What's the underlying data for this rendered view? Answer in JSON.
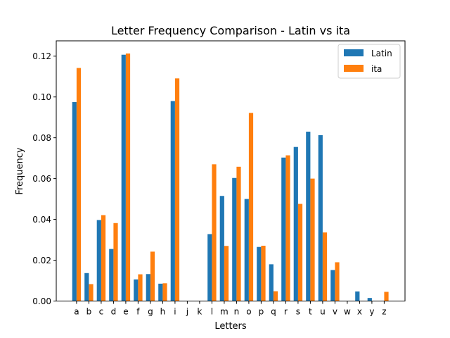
{
  "chart_data": {
    "type": "bar",
    "title": "Letter Frequency Comparison - Latin vs ita",
    "xlabel": "Letters",
    "ylabel": "Frequency",
    "ylim": [
      0,
      0.1275
    ],
    "yticks": [
      "0.00",
      "0.02",
      "0.04",
      "0.06",
      "0.08",
      "0.10",
      "0.12"
    ],
    "ytick_values": [
      0,
      0.02,
      0.04,
      0.06,
      0.08,
      0.1,
      0.12
    ],
    "grid": false,
    "legend_position": "top-right",
    "categories": [
      "a",
      "b",
      "c",
      "d",
      "e",
      "f",
      "g",
      "h",
      "i",
      "j",
      "k",
      "l",
      "m",
      "n",
      "o",
      "p",
      "q",
      "r",
      "s",
      "t",
      "u",
      "v",
      "w",
      "x",
      "y",
      "z"
    ],
    "series": [
      {
        "name": "Latin",
        "color": "#1f77b4",
        "values": [
          0.0975,
          0.0137,
          0.0397,
          0.0255,
          0.1207,
          0.0106,
          0.0132,
          0.0085,
          0.098,
          0.0,
          0.0,
          0.0328,
          0.0515,
          0.0603,
          0.05,
          0.0265,
          0.018,
          0.0703,
          0.0755,
          0.083,
          0.0813,
          0.0152,
          0.0,
          0.0047,
          0.0015,
          0.0
        ]
      },
      {
        "name": "ita",
        "color": "#ff7f0e",
        "values": [
          0.1142,
          0.0083,
          0.0421,
          0.0382,
          0.1213,
          0.0131,
          0.0242,
          0.0087,
          0.1091,
          0.0,
          0.0,
          0.067,
          0.027,
          0.0658,
          0.0922,
          0.0271,
          0.0048,
          0.0714,
          0.0476,
          0.06,
          0.0336,
          0.019,
          0.0,
          0.0,
          0.0,
          0.0045
        ]
      }
    ]
  }
}
